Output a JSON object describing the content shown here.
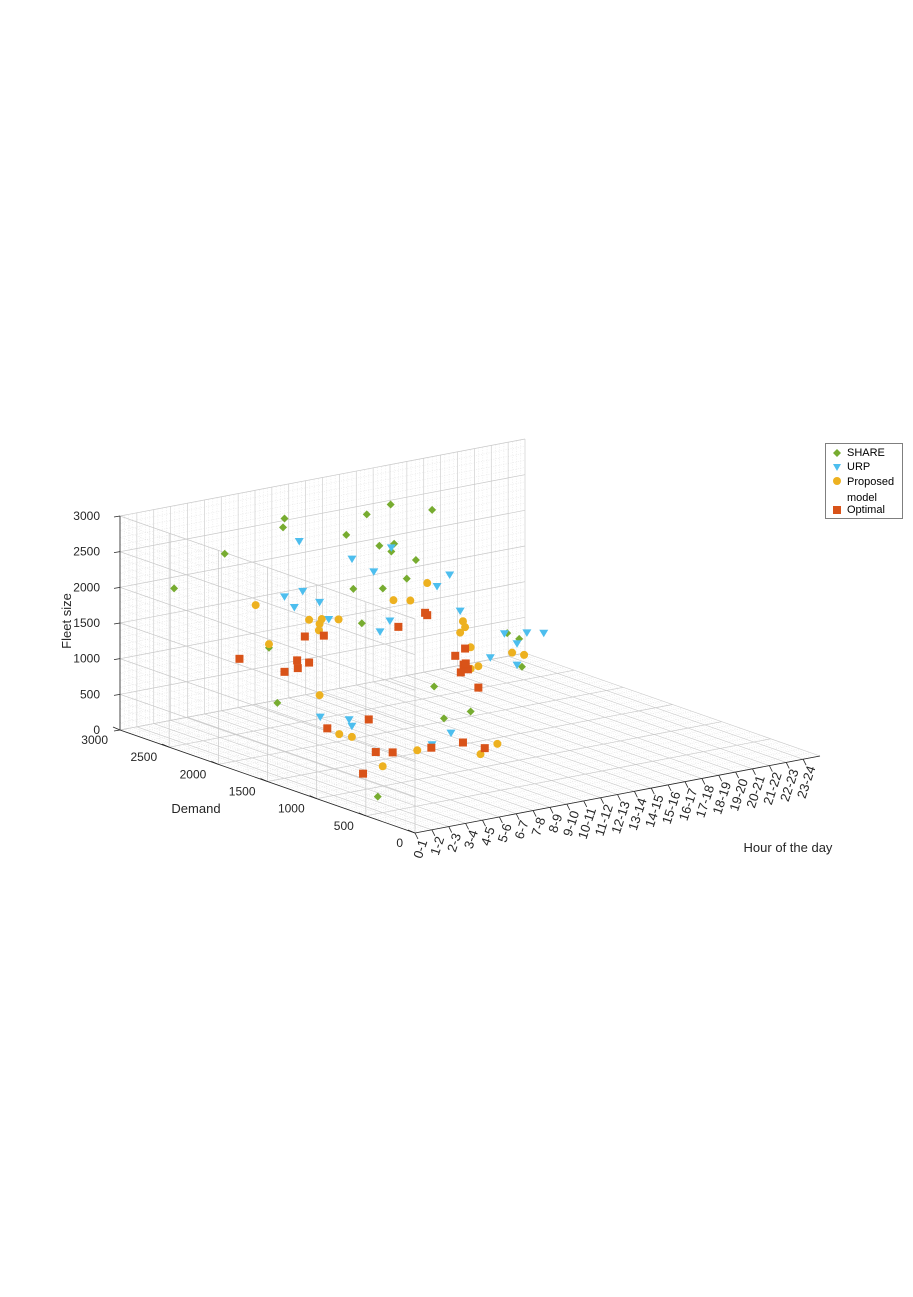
{
  "chart_data": {
    "type": "scatter",
    "projection": "3d",
    "grid": true,
    "legend_position": "top-right, outside",
    "zlabel": "Fleet size",
    "ylabel": "Demand",
    "xlabel": "Hour of the day",
    "zticks": [
      "0",
      "500",
      "1000",
      "1500",
      "2000",
      "2500",
      "3000"
    ],
    "yticks": [
      "0",
      "500",
      "1000",
      "1500",
      "2000",
      "2500",
      "3000"
    ],
    "x_categories": [
      "0-1",
      "1-2",
      "2-3",
      "3-4",
      "4-5",
      "5-6",
      "6-7",
      "7-8",
      "8-9",
      "9-10",
      "10-11",
      "11-12",
      "12-13",
      "13-14",
      "14-15",
      "15-16",
      "16-17",
      "17-18",
      "18-19",
      "19-20",
      "20-21",
      "21-22",
      "22-23",
      "23-24"
    ],
    "xlim": [
      0,
      24
    ],
    "ylim": [
      0,
      3000
    ],
    "zlim": [
      0,
      3000
    ],
    "series": [
      {
        "name": "SHARE",
        "color": "#77ac30",
        "marker": "diamond",
        "points": [
          [
            14,
            2650,
            2700
          ],
          [
            15,
            2400,
            2700
          ],
          [
            8,
            2700,
            2750
          ],
          [
            12,
            2550,
            2700
          ],
          [
            5,
            2200,
            3000
          ],
          [
            7,
            1900,
            2950
          ],
          [
            3,
            2450,
            2600
          ],
          [
            0,
            2450,
            2250
          ],
          [
            11,
            2100,
            2550
          ],
          [
            11,
            2250,
            2450
          ],
          [
            12,
            2300,
            2300
          ],
          [
            12,
            2050,
            2300
          ],
          [
            8,
            1700,
            2250
          ],
          [
            8,
            2000,
            2100
          ],
          [
            10,
            1800,
            2250
          ],
          [
            0,
            1400,
            1150
          ],
          [
            3,
            2000,
            1500
          ],
          [
            12,
            2600,
            1150
          ],
          [
            9,
            1350,
            1000
          ],
          [
            9,
            1250,
            600
          ],
          [
            10,
            1150,
            700
          ],
          [
            1,
            550,
            200
          ],
          [
            11,
            950,
            1850
          ],
          [
            12,
            1000,
            1700
          ],
          [
            11,
            800,
            1450
          ]
        ]
      },
      {
        "name": "URP",
        "color": "#4dbeee",
        "marker": "triangle-down",
        "points": [
          [
            12,
            2700,
            2000
          ],
          [
            12,
            1600,
            1800
          ],
          [
            15,
            2350,
            1650
          ],
          [
            13,
            2650,
            1800
          ],
          [
            8,
            2550,
            2500
          ],
          [
            12,
            2300,
            2350
          ],
          [
            5,
            2000,
            2200
          ],
          [
            6,
            2000,
            2000
          ],
          [
            14,
            2050,
            2000
          ],
          [
            8,
            2700,
            1650
          ],
          [
            8,
            2600,
            1550
          ],
          [
            8,
            2250,
            1550
          ],
          [
            9,
            1800,
            1700
          ],
          [
            11,
            750,
            1950
          ],
          [
            12,
            750,
            1900
          ],
          [
            12,
            1150,
            1700
          ],
          [
            11,
            850,
            1750
          ],
          [
            10,
            950,
            1550
          ],
          [
            11,
            850,
            1450
          ],
          [
            9,
            1900,
            1500
          ],
          [
            4,
            1650,
            650
          ],
          [
            6,
            1700,
            500
          ],
          [
            8,
            1200,
            300
          ],
          [
            10,
            1350,
            300
          ],
          [
            5,
            1500,
            550
          ]
        ]
      },
      {
        "name": "Proposed model",
        "color": "#edb120",
        "marker": "circle",
        "points": [
          [
            12,
            1600,
            1500
          ],
          [
            15,
            2450,
            1650
          ],
          [
            14,
            2450,
            1450
          ],
          [
            13,
            2450,
            1500
          ],
          [
            7,
            2150,
            1650
          ],
          [
            8,
            2150,
            1600
          ],
          [
            6,
            2000,
            1700
          ],
          [
            3,
            2000,
            1550
          ],
          [
            6,
            2650,
            1650
          ],
          [
            8,
            2450,
            1450
          ],
          [
            8,
            2350,
            1350
          ],
          [
            11,
            900,
            1600
          ],
          [
            12,
            950,
            1500
          ],
          [
            11,
            1400,
            1800
          ],
          [
            12,
            1550,
            1600
          ],
          [
            10,
            1150,
            1600
          ],
          [
            9,
            900,
            1500
          ],
          [
            10,
            1150,
            1300
          ],
          [
            1,
            500,
            650
          ],
          [
            6,
            2000,
            700
          ],
          [
            6,
            1800,
            250
          ],
          [
            5,
            1500,
            400
          ],
          [
            8,
            1350,
            150
          ],
          [
            10,
            1050,
            150
          ],
          [
            11,
            1050,
            250
          ]
        ]
      },
      {
        "name": "Optimal",
        "color": "#d95319",
        "marker": "square",
        "points": [
          [
            12,
            1650,
            1150
          ],
          [
            14,
            2300,
            1350
          ],
          [
            13,
            2400,
            1150
          ],
          [
            15,
            2450,
            1200
          ],
          [
            5,
            2050,
            1100
          ],
          [
            6,
            2150,
            1450
          ],
          [
            8,
            2300,
            1300
          ],
          [
            3,
            2300,
            1200
          ],
          [
            7,
            2400,
            950
          ],
          [
            8,
            2450,
            850
          ],
          [
            8,
            2700,
            600
          ],
          [
            11,
            1350,
            1150
          ],
          [
            12,
            1550,
            1300
          ],
          [
            10,
            1250,
            1200
          ],
          [
            9,
            1050,
            1450
          ],
          [
            10,
            1200,
            1350
          ],
          [
            9,
            900,
            1200
          ],
          [
            1,
            700,
            450
          ],
          [
            5,
            1750,
            400
          ],
          [
            7,
            1600,
            50
          ],
          [
            8,
            1600,
            0
          ],
          [
            10,
            1550,
            0
          ],
          [
            11,
            1400,
            100
          ],
          [
            12,
            1350,
            0
          ],
          [
            6,
            1500,
            600
          ]
        ]
      }
    ]
  }
}
